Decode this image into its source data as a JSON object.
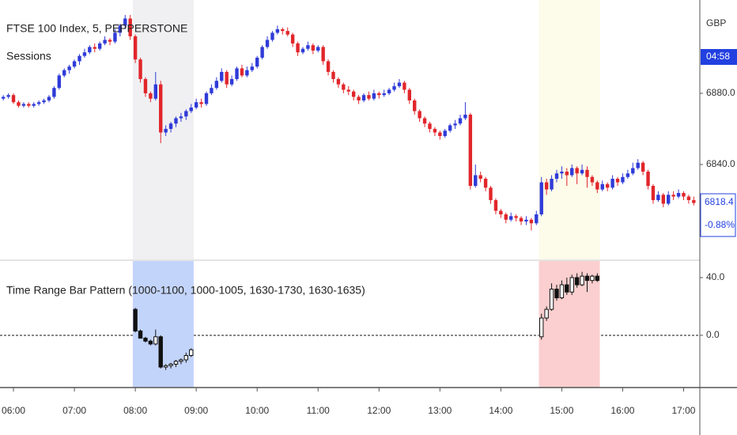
{
  "chart_data": {
    "type": "candlestick",
    "title": "FTSE 100 Index, 5, PEPPERSTONE",
    "subtitle": "Sessions",
    "currency": "GBP",
    "countdown": "04:58",
    "change_label": "-0.88%",
    "up_color": "#2f3bd8",
    "down_color": "#e1262b",
    "session_colors": [
      "#f0f0f3",
      "#fdfbe9"
    ],
    "ylim": [
      6786.7,
      6932.4
    ],
    "yticks": [
      {
        "value": 6880,
        "label": "6880.0"
      },
      {
        "value": 6840,
        "label": "6840.0"
      }
    ],
    "categories": [
      null,
      null,
      "06:00",
      null,
      null,
      null,
      null,
      null,
      null,
      null,
      null,
      null,
      null,
      null,
      "07:00",
      null,
      null,
      null,
      null,
      null,
      null,
      null,
      null,
      null,
      null,
      null,
      "08:00",
      null,
      null,
      null,
      null,
      null,
      null,
      null,
      null,
      null,
      null,
      null,
      "09:00",
      null,
      null,
      null,
      null,
      null,
      null,
      null,
      null,
      null,
      null,
      null,
      "10:00",
      null,
      null,
      null,
      null,
      null,
      null,
      null,
      null,
      null,
      null,
      null,
      "11:00",
      null,
      null,
      null,
      null,
      null,
      null,
      null,
      null,
      null,
      null,
      null,
      "12:00",
      null,
      null,
      null,
      null,
      null,
      null,
      null,
      null,
      null,
      null,
      null,
      "13:00",
      null,
      null,
      null,
      null,
      null,
      null,
      null,
      null,
      null,
      null,
      null,
      "14:00",
      null,
      null,
      null,
      null,
      null,
      null,
      null,
      null,
      null,
      null,
      null,
      "15:00",
      null,
      null,
      null,
      null,
      null,
      null,
      null,
      null,
      null,
      null,
      null,
      "16:00",
      null,
      null,
      null,
      null,
      null,
      null,
      null,
      null,
      null,
      null,
      null,
      "17:00",
      null,
      null
    ],
    "candles": [
      [
        6877,
        6879,
        6876,
        6878
      ],
      [
        6878,
        6880,
        6877,
        6879
      ],
      [
        6879,
        6880,
        6874,
        6875
      ],
      [
        6875,
        6876,
        6872,
        6873
      ],
      [
        6873,
        6875,
        6872,
        6874
      ],
      [
        6874,
        6875,
        6872,
        6873
      ],
      [
        6873,
        6875,
        6872,
        6874
      ],
      [
        6874,
        6876,
        6873,
        6875
      ],
      [
        6875,
        6877,
        6874,
        6876
      ],
      [
        6876,
        6879,
        6875,
        6878
      ],
      [
        6878,
        6884,
        6877,
        6883
      ],
      [
        6883,
        6891,
        6882,
        6890
      ],
      [
        6890,
        6894,
        6889,
        6893
      ],
      [
        6893,
        6896,
        6891,
        6895
      ],
      [
        6895,
        6899,
        6894,
        6898
      ],
      [
        6898,
        6902,
        6896,
        6901
      ],
      [
        6901,
        6905,
        6900,
        6903
      ],
      [
        6903,
        6907,
        6902,
        6906
      ],
      [
        6906,
        6908,
        6903,
        6905
      ],
      [
        6905,
        6909,
        6904,
        6908
      ],
      [
        6908,
        6912,
        6907,
        6910
      ],
      [
        6910,
        6911,
        6907,
        6909
      ],
      [
        6909,
        6916,
        6908,
        6914
      ],
      [
        6914,
        6919,
        6912,
        6918
      ],
      [
        6918,
        6924,
        6916,
        6922
      ],
      [
        6922,
        6924,
        6910,
        6912
      ],
      [
        6912,
        6913,
        6897,
        6899
      ],
      [
        6899,
        6900,
        6886,
        6888
      ],
      [
        6888,
        6889,
        6878,
        6880
      ],
      [
        6880,
        6881,
        6875,
        6877
      ],
      [
        6877,
        6892,
        6876,
        6885
      ],
      [
        6885,
        6887,
        6852,
        6858
      ],
      [
        6858,
        6862,
        6856,
        6860
      ],
      [
        6860,
        6864,
        6858,
        6863
      ],
      [
        6863,
        6867,
        6861,
        6866
      ],
      [
        6866,
        6869,
        6864,
        6867
      ],
      [
        6867,
        6871,
        6865,
        6870
      ],
      [
        6870,
        6874,
        6869,
        6872
      ],
      [
        6872,
        6877,
        6871,
        6875
      ],
      [
        6875,
        6877,
        6872,
        6874
      ],
      [
        6874,
        6881,
        6873,
        6880
      ],
      [
        6880,
        6885,
        6879,
        6883
      ],
      [
        6883,
        6889,
        6882,
        6887
      ],
      [
        6887,
        6894,
        6886,
        6892
      ],
      [
        6892,
        6893,
        6883,
        6885
      ],
      [
        6885,
        6890,
        6884,
        6888
      ],
      [
        6888,
        6895,
        6887,
        6894
      ],
      [
        6894,
        6896,
        6889,
        6890
      ],
      [
        6890,
        6895,
        6889,
        6893
      ],
      [
        6893,
        6897,
        6892,
        6895
      ],
      [
        6895,
        6901,
        6894,
        6900
      ],
      [
        6900,
        6907,
        6899,
        6906
      ],
      [
        6906,
        6912,
        6905,
        6910
      ],
      [
        6910,
        6915,
        6909,
        6914
      ],
      [
        6914,
        6918,
        6913,
        6916
      ],
      [
        6916,
        6917,
        6913,
        6915
      ],
      [
        6915,
        6917,
        6912,
        6913
      ],
      [
        6913,
        6914,
        6906,
        6908
      ],
      [
        6908,
        6909,
        6901,
        6903
      ],
      [
        6903,
        6906,
        6902,
        6905
      ],
      [
        6905,
        6909,
        6904,
        6907
      ],
      [
        6907,
        6908,
        6902,
        6904
      ],
      [
        6904,
        6907,
        6903,
        6906
      ],
      [
        6906,
        6907,
        6896,
        6898
      ],
      [
        6898,
        6899,
        6890,
        6892
      ],
      [
        6892,
        6893,
        6886,
        6888
      ],
      [
        6888,
        6889,
        6883,
        6885
      ],
      [
        6885,
        6886,
        6880,
        6882
      ],
      [
        6882,
        6884,
        6879,
        6881
      ],
      [
        6881,
        6882,
        6876,
        6878
      ],
      [
        6878,
        6879,
        6874,
        6876
      ],
      [
        6876,
        6880,
        6875,
        6879
      ],
      [
        6879,
        6881,
        6876,
        6877
      ],
      [
        6877,
        6882,
        6876,
        6880
      ],
      [
        6880,
        6881,
        6877,
        6879
      ],
      [
        6879,
        6882,
        6878,
        6880
      ],
      [
        6880,
        6883,
        6879,
        6882
      ],
      [
        6882,
        6886,
        6881,
        6884
      ],
      [
        6884,
        6888,
        6883,
        6886
      ],
      [
        6886,
        6887,
        6880,
        6882
      ],
      [
        6882,
        6883,
        6874,
        6876
      ],
      [
        6876,
        6877,
        6868,
        6870
      ],
      [
        6870,
        6871,
        6864,
        6866
      ],
      [
        6866,
        6867,
        6861,
        6863
      ],
      [
        6863,
        6864,
        6858,
        6860
      ],
      [
        6860,
        6861,
        6856,
        6858
      ],
      [
        6858,
        6859,
        6854,
        6856
      ],
      [
        6856,
        6860,
        6855,
        6859
      ],
      [
        6859,
        6863,
        6858,
        6862
      ],
      [
        6862,
        6865,
        6860,
        6863
      ],
      [
        6863,
        6868,
        6862,
        6866
      ],
      [
        6866,
        6875,
        6865,
        6868
      ],
      [
        6868,
        6869,
        6826,
        6828
      ],
      [
        6828,
        6840,
        6827,
        6834
      ],
      [
        6834,
        6836,
        6830,
        6832
      ],
      [
        6832,
        6833,
        6825,
        6827
      ],
      [
        6827,
        6828,
        6818,
        6820
      ],
      [
        6820,
        6821,
        6812,
        6814
      ],
      [
        6814,
        6815,
        6810,
        6812
      ],
      [
        6812,
        6813,
        6807,
        6809
      ],
      [
        6809,
        6813,
        6808,
        6811
      ],
      [
        6811,
        6812,
        6808,
        6810
      ],
      [
        6810,
        6811,
        6806,
        6808
      ],
      [
        6808,
        6811,
        6806,
        6809
      ],
      [
        6809,
        6810,
        6803,
        6807
      ],
      [
        6807,
        6814,
        6806,
        6812
      ],
      [
        6812,
        6833,
        6811,
        6830
      ],
      [
        6830,
        6832,
        6823,
        6826
      ],
      [
        6826,
        6834,
        6825,
        6832
      ],
      [
        6832,
        6837,
        6830,
        6835
      ],
      [
        6835,
        6839,
        6832,
        6836
      ],
      [
        6836,
        6838,
        6828,
        6834
      ],
      [
        6834,
        6840,
        6833,
        6838
      ],
      [
        6838,
        6839,
        6829,
        6835
      ],
      [
        6835,
        6840,
        6834,
        6837
      ],
      [
        6837,
        6839,
        6827,
        6833
      ],
      [
        6833,
        6834,
        6828,
        6830
      ],
      [
        6830,
        6831,
        6824,
        6826
      ],
      [
        6826,
        6831,
        6825,
        6829
      ],
      [
        6829,
        6830,
        6825,
        6827
      ],
      [
        6827,
        6834,
        6826,
        6832
      ],
      [
        6832,
        6833,
        6828,
        6830
      ],
      [
        6830,
        6835,
        6829,
        6833
      ],
      [
        6833,
        6837,
        6832,
        6835
      ],
      [
        6835,
        6841,
        6834,
        6838
      ],
      [
        6838,
        6843,
        6837,
        6841
      ],
      [
        6841,
        6842,
        6834,
        6836
      ],
      [
        6836,
        6837,
        6826,
        6828
      ],
      [
        6828,
        6829,
        6818,
        6820
      ],
      [
        6820,
        6825,
        6819,
        6823
      ],
      [
        6823,
        6824,
        6816,
        6818
      ],
      [
        6818,
        6825,
        6817,
        6823
      ],
      [
        6823,
        6825,
        6820,
        6822
      ],
      [
        6822,
        6826,
        6821,
        6824
      ],
      [
        6824,
        6825,
        6820,
        6822
      ],
      [
        6822,
        6823,
        6818,
        6820
      ],
      [
        6820,
        6822,
        6817,
        6818.4
      ]
    ],
    "indicator": {
      "title": "Time Range Bar Pattern (1000-1100, 1000-1005, 1630-1730, 1630-1635)",
      "bg_colors": [
        "#c3d4fb",
        "#fbcfcf"
      ],
      "ylim": [
        -36.2,
        51.5
      ],
      "yticks": [
        {
          "value": 40,
          "label": "40.0"
        },
        {
          "value": 0,
          "label": "0.0"
        }
      ],
      "hline": 0,
      "candles": [
        null,
        null,
        null,
        null,
        null,
        null,
        null,
        null,
        null,
        null,
        null,
        null,
        null,
        null,
        null,
        null,
        null,
        null,
        null,
        null,
        null,
        null,
        null,
        null,
        null,
        null,
        [
          18,
          19,
          2,
          3
        ],
        [
          3,
          4,
          -2,
          -2
        ],
        [
          -2,
          -1,
          -5,
          -4
        ],
        [
          -4,
          -3,
          -7,
          -6
        ],
        [
          -6,
          4,
          -7,
          -1
        ],
        [
          -1,
          0,
          -23,
          -22
        ],
        [
          -22,
          -20,
          -24,
          -21
        ],
        [
          -21,
          -19,
          -23,
          -20
        ],
        [
          -20,
          -17,
          -22,
          -18
        ],
        [
          -18,
          -16,
          -20,
          -17
        ],
        [
          -17,
          -12,
          -19,
          -14
        ],
        [
          -14,
          -9,
          -15,
          -10
        ],
        null,
        null,
        null,
        null,
        null,
        null,
        null,
        null,
        null,
        null,
        null,
        null,
        null,
        null,
        null,
        null,
        null,
        null,
        null,
        null,
        null,
        null,
        null,
        null,
        null,
        null,
        null,
        null,
        null,
        null,
        null,
        null,
        null,
        null,
        null,
        null,
        null,
        null,
        null,
        null,
        null,
        null,
        null,
        null,
        null,
        null,
        null,
        null,
        null,
        null,
        null,
        null,
        null,
        null,
        null,
        null,
        null,
        null,
        null,
        null,
        null,
        null,
        null,
        null,
        null,
        null,
        null,
        null,
        [
          -1,
          15,
          -3,
          12
        ],
        [
          12,
          20,
          10,
          18
        ],
        [
          18,
          36,
          17,
          32
        ],
        [
          32,
          35,
          24,
          26
        ],
        [
          26,
          38,
          25,
          35
        ],
        [
          35,
          40,
          28,
          30
        ],
        [
          30,
          42,
          28,
          40
        ],
        [
          40,
          43,
          33,
          35
        ],
        [
          35,
          44,
          34,
          41
        ],
        [
          41,
          43,
          30,
          38
        ],
        [
          38,
          42,
          36,
          41
        ],
        [
          41,
          43,
          37,
          38
        ],
        null,
        null,
        null,
        null,
        null,
        null,
        null,
        null,
        null,
        null,
        null,
        null,
        null,
        null,
        null,
        null,
        null,
        null,
        null,
        null,
        null
      ]
    }
  }
}
